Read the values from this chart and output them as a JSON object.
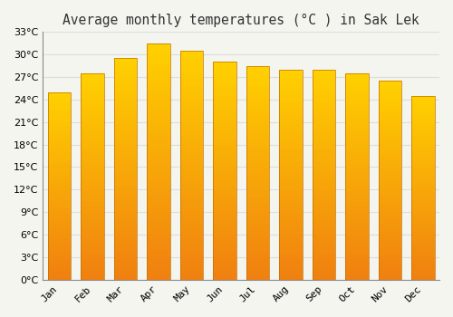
{
  "title": "Average monthly temperatures (°C ) in Sak Lek",
  "months": [
    "Jan",
    "Feb",
    "Mar",
    "Apr",
    "May",
    "Jun",
    "Jul",
    "Aug",
    "Sep",
    "Oct",
    "Nov",
    "Dec"
  ],
  "temperatures": [
    25.0,
    27.5,
    29.5,
    31.5,
    30.5,
    29.0,
    28.5,
    28.0,
    28.0,
    27.5,
    26.5,
    24.5
  ],
  "bar_color_top": "#FFD000",
  "bar_color_bottom": "#F08010",
  "bar_edge_color": "#C07000",
  "ylim": [
    0,
    33
  ],
  "ytick_step": 3,
  "background_color": "#f5f5f0",
  "plot_bg_color": "#f5f5f0",
  "grid_color": "#dddddd",
  "title_fontsize": 10.5,
  "tick_fontsize": 8,
  "bar_width": 0.7
}
